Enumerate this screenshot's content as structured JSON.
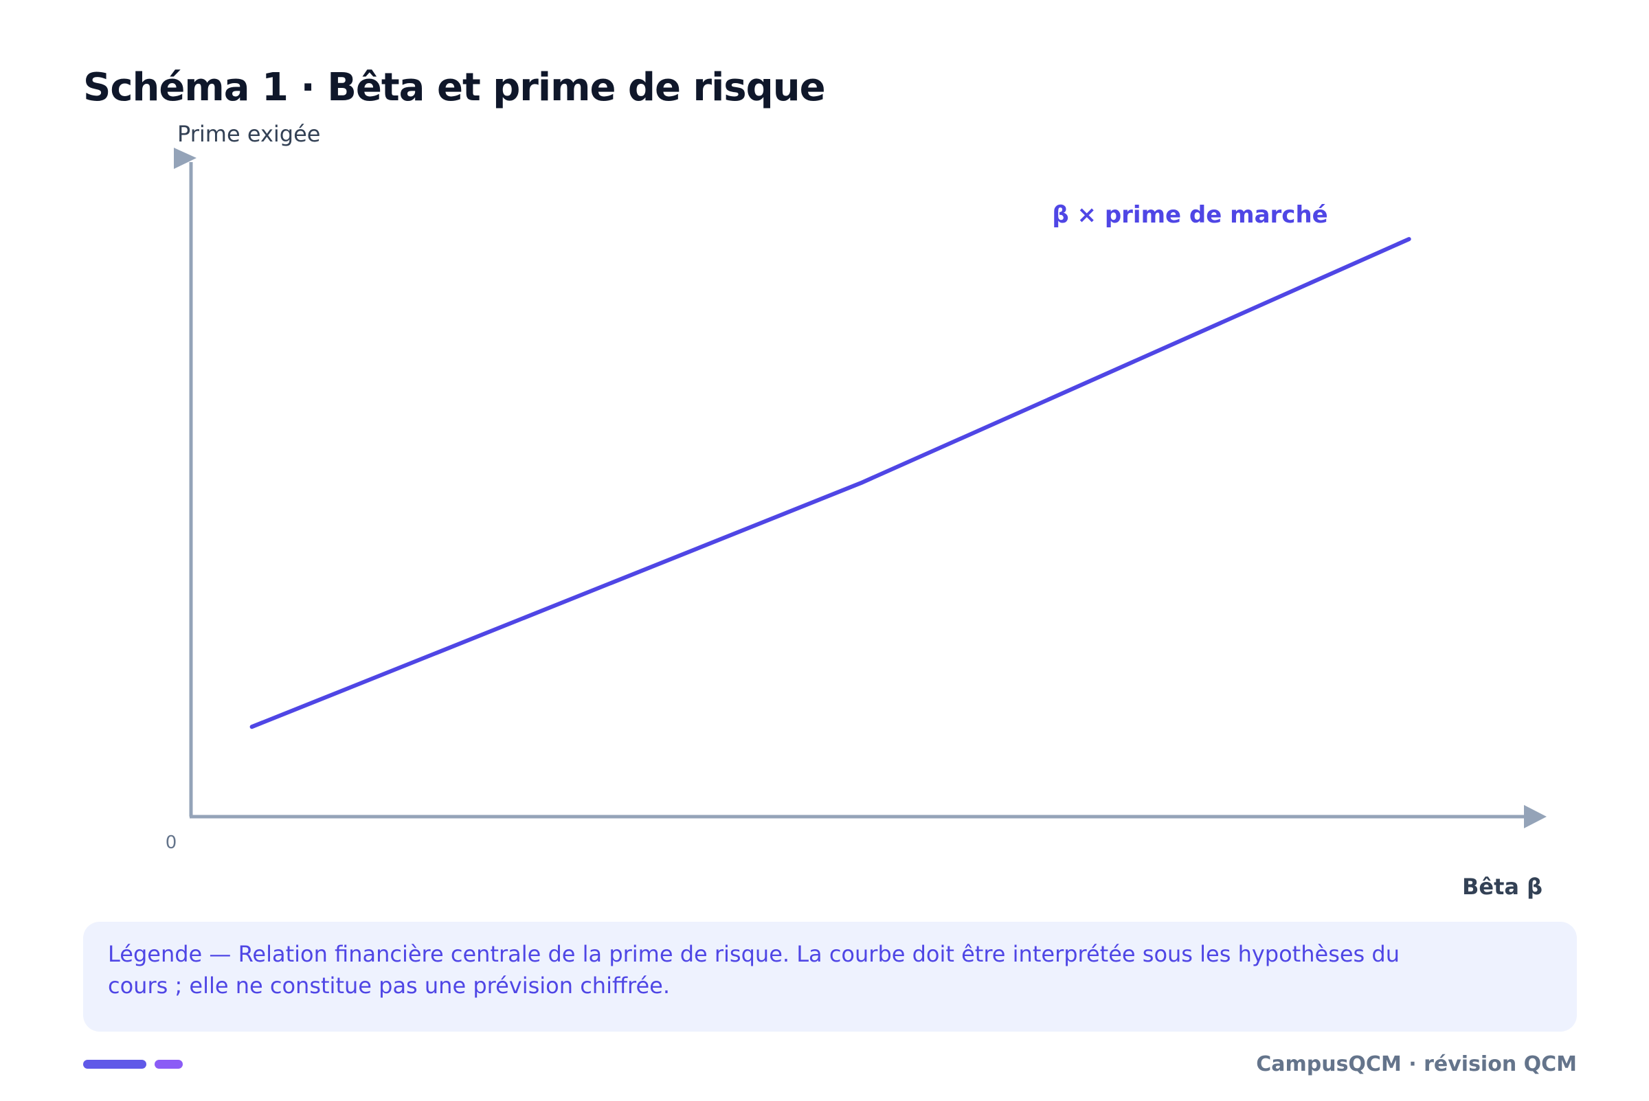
{
  "page": {
    "title": "Schéma 1 · Bêta et prime de risque"
  },
  "chart_data": {
    "type": "line",
    "title": "Schéma 1 · Bêta et prime de risque",
    "xlabel": "Bêta β",
    "ylabel": "Prime exigée",
    "origin_label": "0",
    "x_tick_labels": [],
    "y_tick_labels": [],
    "grid": false,
    "series": [
      {
        "name": "β × prime de marché",
        "x": [
          0.1,
          1.1,
          2.0
        ],
        "y": [
          0.14,
          0.52,
          0.9
        ]
      }
    ],
    "xlim": [
      0,
      2.2
    ],
    "ylim": [
      0,
      1.02
    ]
  },
  "legend": {
    "text": "Légende — Relation financière centrale de la prime de risque. La courbe doit être interprétée sous les hypothèses du cours ; elle ne constitue pas une prévision chiffrée."
  },
  "footer": {
    "credit": "CampusQCM · révision QCM"
  },
  "colors": {
    "line": "#4f46e5",
    "axis": "#94a3b8",
    "title": "#0f172a",
    "axis_label": "#334155",
    "legend_bg": "#eef2fe",
    "legend_text": "#4f46e5",
    "footer_text": "#64748b",
    "accent_1": "#6059e8",
    "accent_2": "#8b5cf6"
  }
}
